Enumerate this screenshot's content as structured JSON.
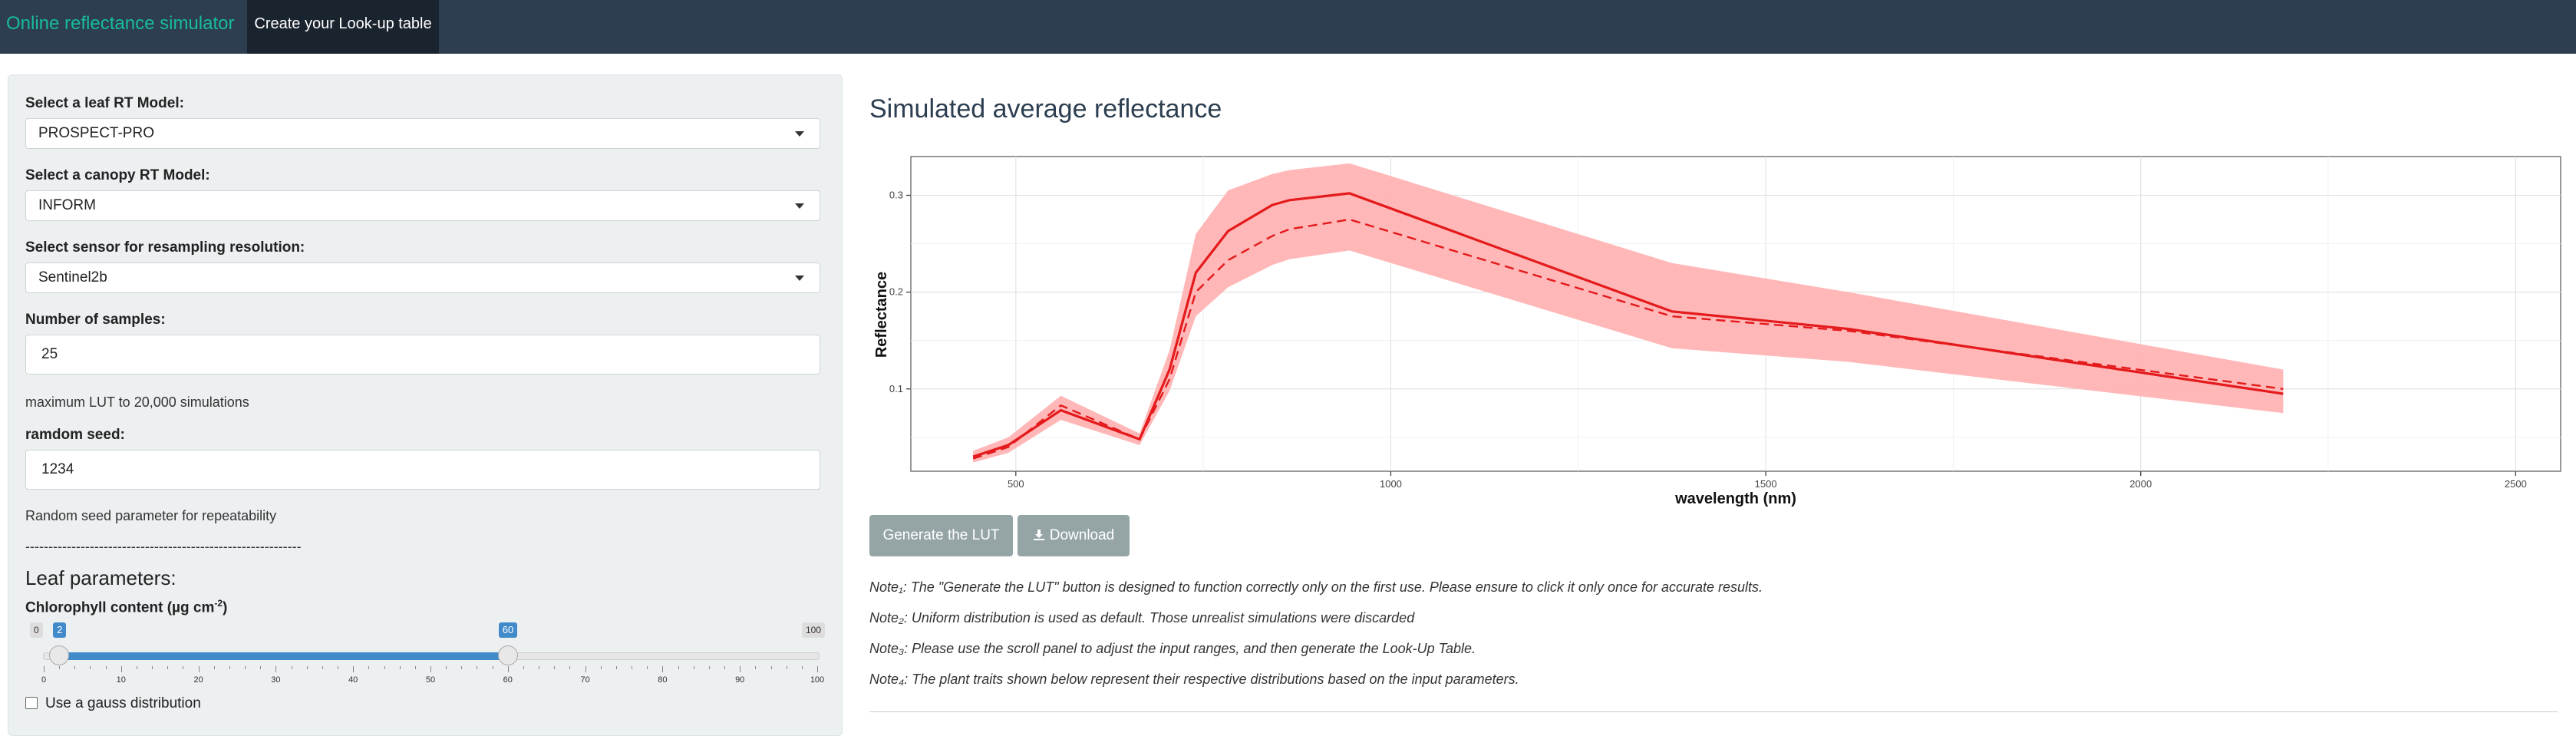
{
  "navbar": {
    "brand": "Online reflectance simulator",
    "tab": "Create your Look-up table"
  },
  "sidebar": {
    "leaf_model": {
      "label": "Select a leaf RT Model:",
      "value": "PROSPECT-PRO"
    },
    "canopy_model": {
      "label": "Select a canopy RT Model:",
      "value": "INFORM"
    },
    "sensor": {
      "label": "Select sensor for resampling resolution:",
      "value": "Sentinel2b"
    },
    "samples": {
      "label": "Number of samples:",
      "value": "25",
      "note": "maximum LUT to 20,000 simulations"
    },
    "seed": {
      "label": "ramdom seed:",
      "value": "1234",
      "note": "Random seed parameter for repeatability"
    },
    "separator": "------------------------------------------------------------",
    "leaf_section": "Leaf parameters:",
    "chlorophyll": {
      "label": "Chlorophyll content (µg cm",
      "label_sup": "-2",
      "label_end": ")",
      "min": 0,
      "max": 100,
      "from": 2,
      "to": 60,
      "min_label": "0",
      "max_label": "100",
      "from_label": "2",
      "to_label": "60",
      "ticks": [
        "0",
        "10",
        "20",
        "30",
        "40",
        "50",
        "60",
        "70",
        "80",
        "90",
        "100"
      ]
    },
    "gauss_checkbox": "Use a gauss distribution"
  },
  "main": {
    "title": "Simulated average reflectance",
    "buttons": {
      "generate": "Generate the LUT",
      "download": "Download",
      "download_icon": "download-icon"
    },
    "notes": [
      "Note₁: The \"Generate the LUT\" button is designed to function correctly only on the first use. Please ensure to click it only once for accurate results.",
      "Note₂: Uniform distribution is used as default. Those unrealist simulations were discarded",
      "Note₃: Please use the scroll panel to adjust the input ranges, and then generate the Look-Up Table.",
      "Note₄: The plant traits shown below represent their respective distributions based on the input parameters."
    ]
  },
  "chart_data": {
    "type": "line",
    "xlabel": "wavelength (nm)",
    "ylabel": "Reflectance",
    "xlim": [
      360,
      2560
    ],
    "ylim": [
      0.015,
      0.34
    ],
    "xticks": [
      500,
      1000,
      1500,
      2000,
      2500
    ],
    "yticks": [
      0.1,
      0.2,
      0.3
    ],
    "grid": true,
    "colors": {
      "line": "#e41a1c",
      "band": "#ffb3b3"
    },
    "x": [
      443,
      490,
      560,
      665,
      705,
      740,
      783,
      842,
      865,
      945,
      1375,
      1610,
      2190
    ],
    "series": [
      {
        "style": "solid",
        "values": [
          0.03,
          0.042,
          0.078,
          0.048,
          0.12,
          0.22,
          0.263,
          0.29,
          0.295,
          0.302,
          0.18,
          0.162,
          0.095
        ]
      },
      {
        "style": "dashed",
        "values": [
          0.028,
          0.04,
          0.083,
          0.048,
          0.11,
          0.2,
          0.233,
          0.258,
          0.265,
          0.275,
          0.175,
          0.16,
          0.1
        ]
      }
    ],
    "band_upper": [
      0.036,
      0.05,
      0.093,
      0.054,
      0.14,
      0.26,
      0.305,
      0.322,
      0.326,
      0.333,
      0.23,
      0.2,
      0.12
    ],
    "band_lower": [
      0.024,
      0.034,
      0.068,
      0.042,
      0.098,
      0.175,
      0.205,
      0.228,
      0.234,
      0.243,
      0.142,
      0.128,
      0.075
    ]
  }
}
